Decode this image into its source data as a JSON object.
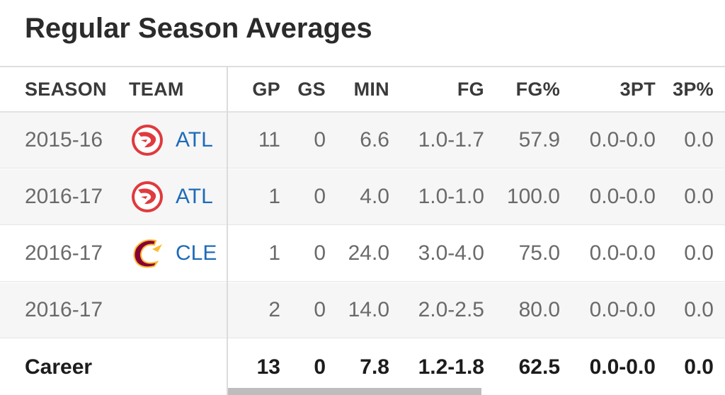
{
  "title": "Regular Season Averages",
  "columns": {
    "season": "SEASON",
    "team": "TEAM",
    "gp": "GP",
    "gs": "GS",
    "min": "MIN",
    "fg": "FG",
    "fgp": "FG%",
    "tpt": "3PT",
    "tpp": "3P%"
  },
  "rows": [
    {
      "season": "2015-16",
      "team": "ATL",
      "logo": "hawks-logo-icon",
      "gp": "11",
      "gs": "0",
      "min": "6.6",
      "fg": "1.0-1.7",
      "fgp": "57.9",
      "tpt": "0.0-0.0",
      "tpp": "0.0"
    },
    {
      "season": "2016-17",
      "team": "ATL",
      "logo": "hawks-logo-icon",
      "gp": "1",
      "gs": "0",
      "min": "4.0",
      "fg": "1.0-1.0",
      "fgp": "100.0",
      "tpt": "0.0-0.0",
      "tpp": "0.0"
    },
    {
      "season": "2016-17",
      "team": "CLE",
      "logo": "cavaliers-logo-icon",
      "gp": "1",
      "gs": "0",
      "min": "24.0",
      "fg": "3.0-4.0",
      "fgp": "75.0",
      "tpt": "0.0-0.0",
      "tpp": "0.0"
    },
    {
      "season": "2016-17",
      "team": "",
      "logo": "",
      "gp": "2",
      "gs": "0",
      "min": "14.0",
      "fg": "2.0-2.5",
      "fgp": "80.0",
      "tpt": "0.0-0.0",
      "tpp": "0.0"
    }
  ],
  "career": {
    "label": "Career",
    "gp": "13",
    "gs": "0",
    "min": "7.8",
    "fg": "1.2-1.8",
    "fgp": "62.5",
    "tpt": "0.0-0.0",
    "tpp": "0.0"
  },
  "colors": {
    "team_link": "#1e6bb8",
    "hawks_red": "#e03a3e",
    "cavs_wine": "#860038",
    "cavs_gold": "#fdbb30"
  }
}
